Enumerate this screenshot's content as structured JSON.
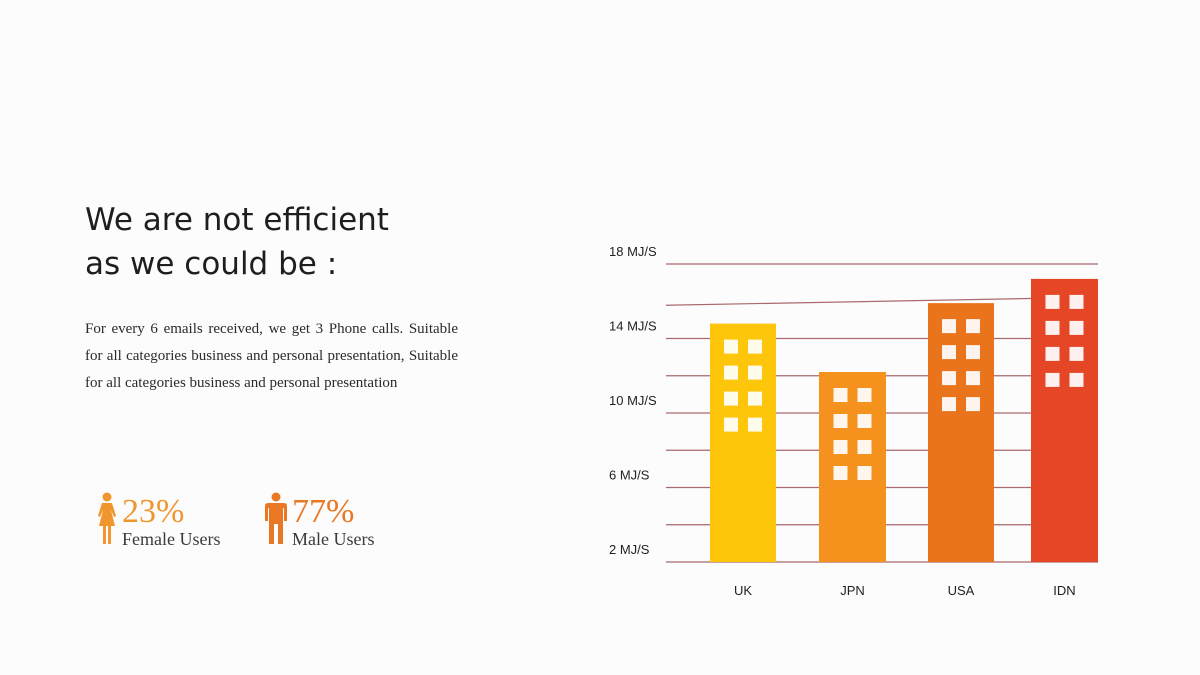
{
  "heading": {
    "line1": "We are not efficient",
    "line2": "as we could be :"
  },
  "description": "For every 6 emails received, we get 3 Phone calls. Suitable for all categories business and personal presentation, Suitable for all categories business and personal presentation",
  "stats": {
    "female": {
      "percent": "23%",
      "label": "Female Users",
      "icon": "female-person-icon",
      "color": "#f0962e"
    },
    "male": {
      "percent": "77%",
      "label": "Male Users",
      "icon": "male-person-icon",
      "color": "#ea7723"
    }
  },
  "chart_data": {
    "type": "bar",
    "title": "",
    "xlabel": "",
    "ylabel": "",
    "categories": [
      "UK",
      "JPN",
      "USA",
      "IDN"
    ],
    "values": [
      12.8,
      10.2,
      13.9,
      15.2
    ],
    "colors": [
      "#fdc60b",
      "#f5921e",
      "#ea741b",
      "#e54726"
    ],
    "ytick_labels": [
      "18 MJ/S",
      "14 MJ/S",
      "10 MJ/S",
      "6 MJ/S",
      "2 MJ/S"
    ],
    "ylim": [
      0,
      16
    ],
    "grid": true,
    "gridline_color": "#a9696d",
    "bar_style": "building-with-windows"
  }
}
